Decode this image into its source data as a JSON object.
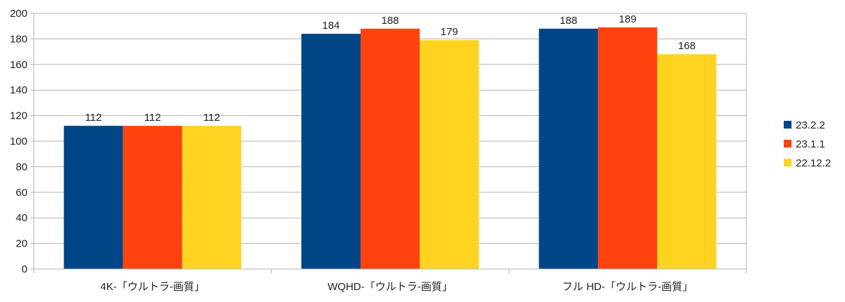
{
  "chart_data": {
    "type": "bar",
    "title": "",
    "xlabel": "",
    "ylabel": "",
    "categories": [
      "4K-「ウルトラ-画質」",
      "WQHD-「ウルトラ-画質」",
      "フル HD-「ウルトラ-画質」"
    ],
    "series": [
      {
        "name": "23.2.2",
        "color": "#004586",
        "values": [
          112,
          184,
          188
        ]
      },
      {
        "name": "23.1.1",
        "color": "#ff420e",
        "values": [
          112,
          188,
          189
        ]
      },
      {
        "name": "22.12.2",
        "color": "#ffd320",
        "values": [
          112,
          179,
          168
        ]
      }
    ],
    "ylim": [
      0,
      200
    ],
    "yticks": [
      "0",
      "20",
      "40",
      "60",
      "80",
      "100",
      "120",
      "140",
      "160",
      "180",
      "200"
    ],
    "grid": true,
    "legend": "right",
    "data_labels": true
  }
}
